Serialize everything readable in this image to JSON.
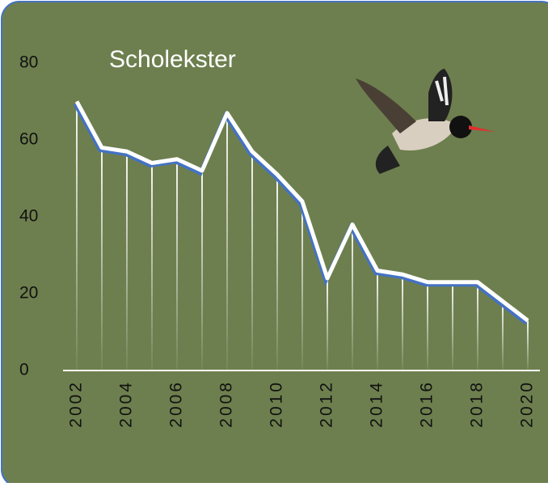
{
  "chart_data": {
    "type": "line",
    "title": "Scholekster",
    "x": [
      2002,
      2003,
      2004,
      2005,
      2006,
      2007,
      2008,
      2009,
      2010,
      2011,
      2012,
      2013,
      2014,
      2015,
      2016,
      2017,
      2018,
      2019,
      2020
    ],
    "values": [
      70,
      58,
      57,
      54,
      55,
      52,
      67,
      57,
      51,
      44,
      24,
      38,
      26,
      25,
      23,
      23,
      23,
      18,
      13
    ],
    "color": "#ffffff",
    "xlim": [
      2002,
      2020
    ],
    "xticks": [
      2002,
      2004,
      2006,
      2008,
      2010,
      2012,
      2014,
      2016,
      2018,
      2020
    ],
    "ylim": [
      0,
      80
    ],
    "yticks": [
      0,
      20,
      40,
      60,
      80
    ],
    "grid": false
  }
}
